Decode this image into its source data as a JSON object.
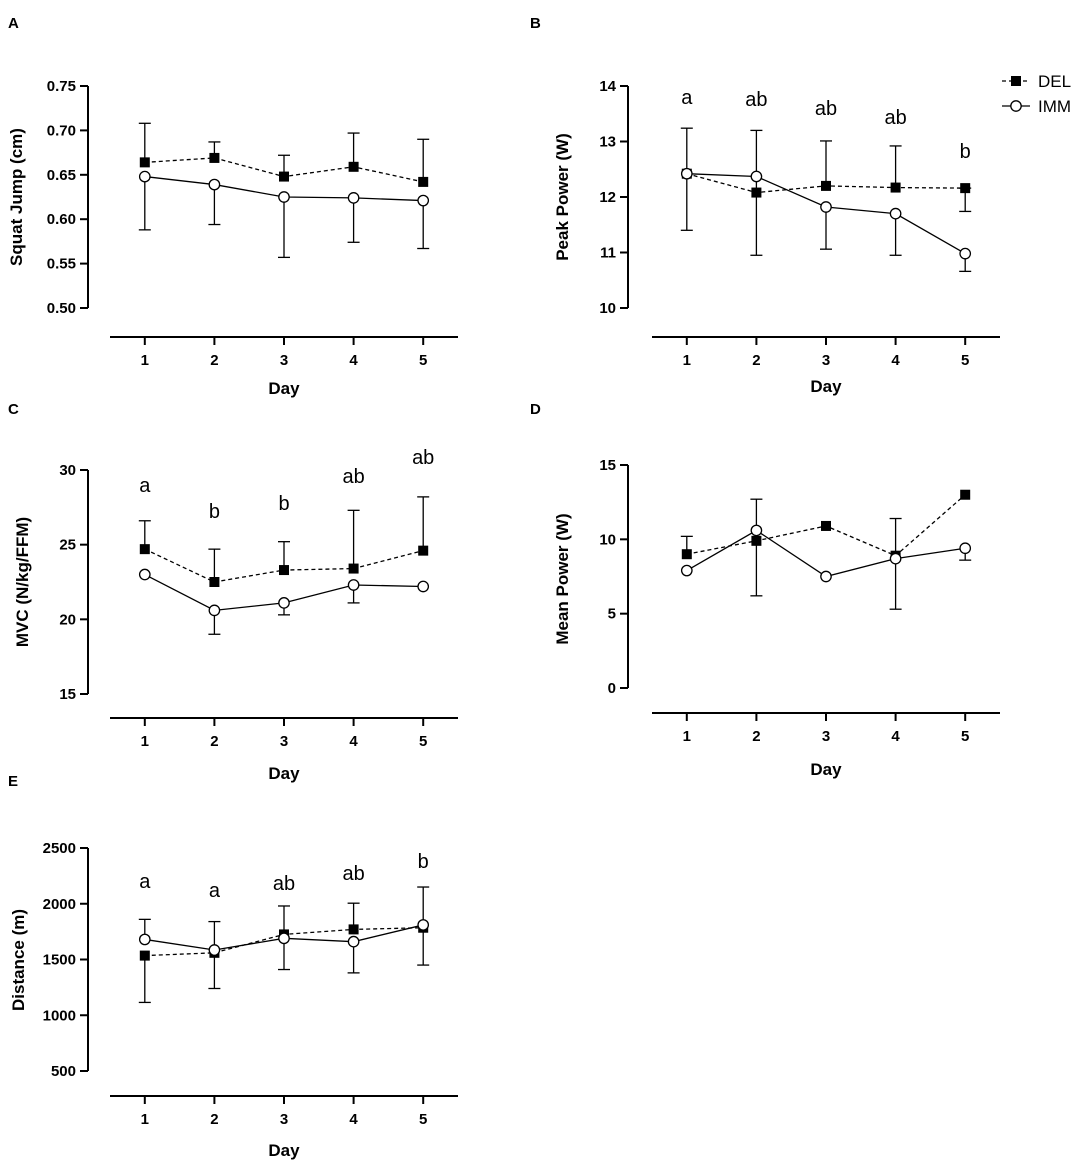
{
  "legend": [
    {
      "name": "DEL",
      "marker": "square-filled",
      "line": "dashed"
    },
    {
      "name": "IMM",
      "marker": "circle-open",
      "line": "solid"
    }
  ],
  "chart_data": [
    {
      "panel": "A",
      "type": "line",
      "title": "",
      "xlabel": "Day",
      "ylabel": "Squat Jump (cm)",
      "x": [
        1,
        2,
        3,
        4,
        5
      ],
      "ylim": [
        0.5,
        0.75
      ],
      "yticks": [
        "0.50",
        "0.55",
        "0.60",
        "0.65",
        "0.70",
        "0.75"
      ],
      "series": [
        {
          "name": "DEL",
          "values": [
            0.664,
            0.669,
            0.648,
            0.659,
            0.642
          ],
          "err_upper": [
            0.708,
            0.687,
            0.672,
            0.697,
            0.69
          ],
          "err_lower": [
            null,
            null,
            null,
            null,
            null
          ]
        },
        {
          "name": "IMM",
          "values": [
            0.648,
            0.639,
            0.625,
            0.624,
            0.621
          ],
          "err_upper": [
            null,
            null,
            null,
            null,
            null
          ],
          "err_lower": [
            0.588,
            0.594,
            0.557,
            0.574,
            0.567
          ]
        }
      ],
      "annotations": []
    },
    {
      "panel": "B",
      "type": "line",
      "title": "",
      "xlabel": "Day",
      "ylabel": "Peak Power (W)",
      "x": [
        1,
        2,
        3,
        4,
        5
      ],
      "ylim": [
        10,
        14
      ],
      "yticks": [
        "10",
        "11",
        "12",
        "13",
        "14"
      ],
      "series": [
        {
          "name": "DEL",
          "values": [
            12.42,
            12.08,
            12.2,
            12.17,
            12.16
          ],
          "err_upper": [
            13.24,
            13.2,
            13.01,
            12.92,
            12.16
          ],
          "err_lower": [
            null,
            10.95,
            null,
            null,
            11.74
          ]
        },
        {
          "name": "IMM",
          "values": [
            12.42,
            12.37,
            11.82,
            11.7,
            10.98
          ],
          "err_upper": [
            null,
            null,
            null,
            null,
            null
          ],
          "err_lower": [
            11.4,
            null,
            11.06,
            10.95,
            10.66
          ]
        }
      ],
      "annotations": [
        "a",
        "ab",
        "ab",
        "ab",
        "b"
      ]
    },
    {
      "panel": "C",
      "type": "line",
      "title": "",
      "xlabel": "Day",
      "ylabel": "MVC (N/kg/FFM)",
      "x": [
        1,
        2,
        3,
        4,
        5
      ],
      "ylim": [
        15,
        30
      ],
      "yticks": [
        "15",
        "20",
        "25",
        "30"
      ],
      "series": [
        {
          "name": "DEL",
          "values": [
            24.7,
            22.5,
            23.3,
            23.4,
            24.6
          ],
          "err_upper": [
            26.6,
            24.7,
            25.2,
            27.3,
            28.2
          ],
          "err_lower": [
            null,
            null,
            null,
            null,
            null
          ]
        },
        {
          "name": "IMM",
          "values": [
            23.0,
            20.6,
            21.1,
            22.3,
            22.2
          ],
          "err_upper": [
            null,
            null,
            null,
            null,
            null
          ],
          "err_lower": [
            null,
            19.0,
            20.3,
            21.1,
            null
          ]
        }
      ],
      "annotations": [
        "a",
        "b",
        "b",
        "ab",
        "ab"
      ]
    },
    {
      "panel": "D",
      "type": "line",
      "title": "",
      "xlabel": "Day",
      "ylabel": "Mean Power (W)",
      "x": [
        1,
        2,
        3,
        4,
        5
      ],
      "ylim": [
        0,
        15
      ],
      "yticks": [
        "0",
        "5",
        "10",
        "15"
      ],
      "series": [
        {
          "name": "DEL",
          "values": [
            9.0,
            9.9,
            10.9,
            8.9,
            13.0
          ],
          "err_upper": [
            10.2,
            null,
            null,
            11.4,
            null
          ],
          "err_lower": [
            null,
            6.2,
            null,
            5.3,
            null
          ]
        },
        {
          "name": "IMM",
          "values": [
            7.9,
            10.6,
            7.5,
            8.7,
            9.4
          ],
          "err_upper": [
            null,
            12.7,
            null,
            null,
            null
          ],
          "err_lower": [
            null,
            null,
            null,
            null,
            8.6
          ]
        }
      ],
      "annotations": []
    },
    {
      "panel": "E",
      "type": "line",
      "title": "",
      "xlabel": "Day",
      "ylabel": "Distance (m)",
      "x": [
        1,
        2,
        3,
        4,
        5
      ],
      "ylim": [
        500,
        2500
      ],
      "yticks": [
        "500",
        "1000",
        "1500",
        "2000",
        "2500"
      ],
      "series": [
        {
          "name": "DEL",
          "values": [
            1535,
            1560,
            1725,
            1770,
            1785
          ],
          "err_upper": [
            null,
            null,
            1980,
            2005,
            2150
          ],
          "err_lower": [
            1115,
            1240,
            null,
            null,
            1450
          ]
        },
        {
          "name": "IMM",
          "values": [
            1680,
            1585,
            1690,
            1660,
            1810
          ],
          "err_upper": [
            1860,
            1840,
            null,
            null,
            null
          ],
          "err_lower": [
            null,
            null,
            1410,
            1380,
            null
          ]
        }
      ],
      "annotations": [
        "a",
        "a",
        "ab",
        "ab",
        "b"
      ]
    }
  ]
}
